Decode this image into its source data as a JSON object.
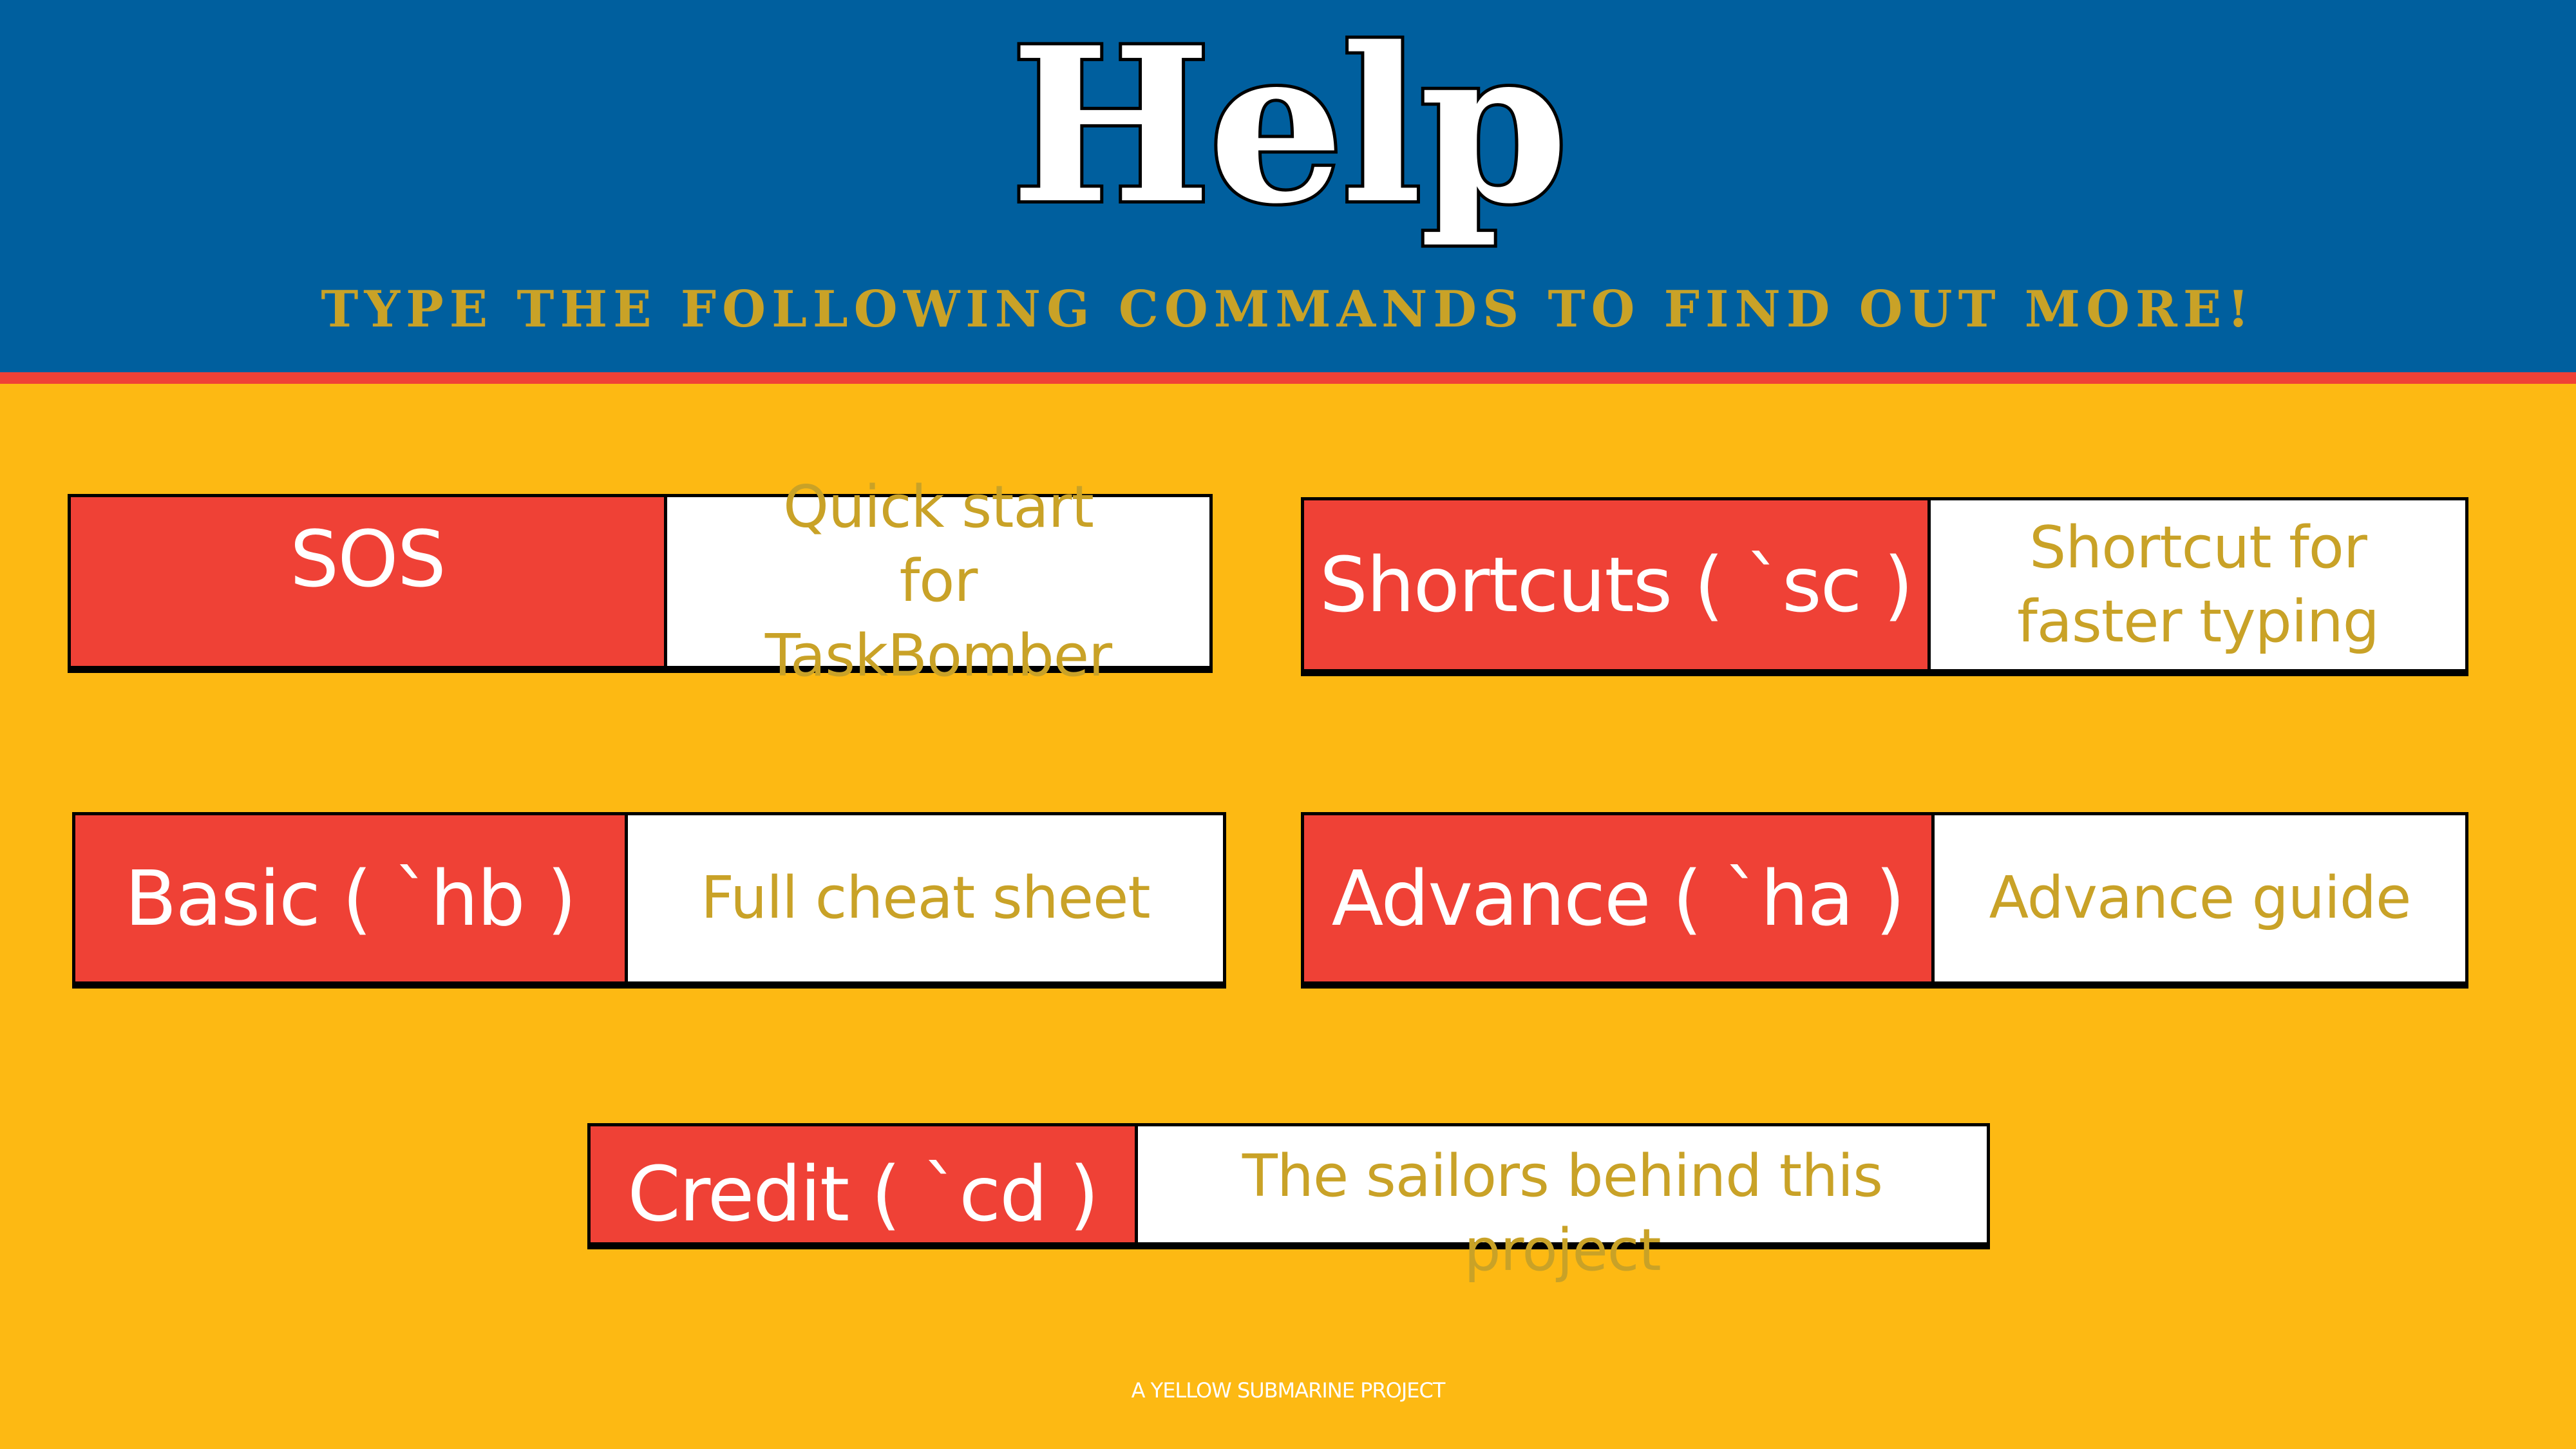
{
  "header": {
    "title": "Help",
    "subtitle": "TYPE THE FOLLOWING COMMANDS TO FIND OUT MORE!"
  },
  "commands": [
    {
      "command": "SOS",
      "description": "Quick start for TaskBomber"
    },
    {
      "command": "Shortcuts ( `sc )",
      "description": "Shortcut for faster typing"
    },
    {
      "command": "Basic ( `hb )",
      "description": "Full cheat sheet"
    },
    {
      "command": "Advance ( `ha )",
      "description": "Advance guide"
    },
    {
      "command": "Credit ( `cd )",
      "description": "The sailors behind this project"
    }
  ],
  "footer": {
    "text": "A YELLOW SUBMARINE PROJECT"
  },
  "colors": {
    "header_blue": "#005F9E",
    "accent_red": "#EF4136",
    "background_yellow": "#FDB913",
    "description_gold": "#C9A227",
    "white": "#FFFFFF"
  }
}
